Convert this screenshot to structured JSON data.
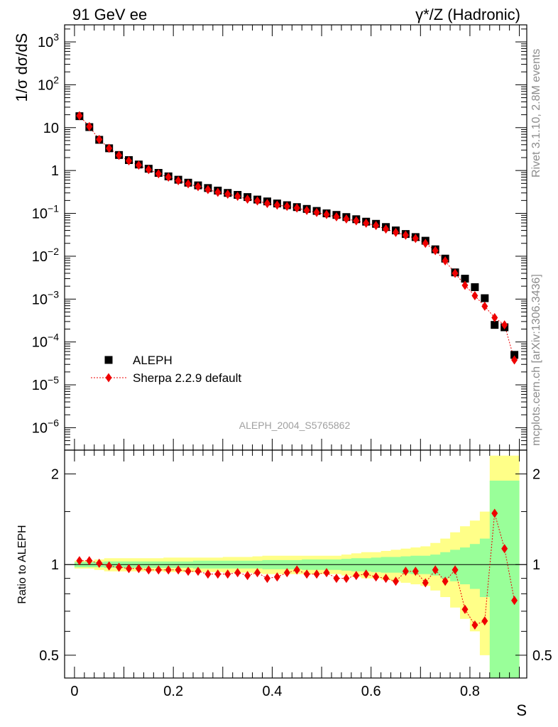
{
  "header": {
    "left": "91 GeV ee",
    "right": "γ*/Z (Hadronic)"
  },
  "side_labels": {
    "rivet": "Rivet 3.1.10,  2.8M events",
    "mcplots": "mcplots.cern.ch [arXiv:1306.3436]"
  },
  "watermark": "ALEPH_2004_S5765862",
  "colors": {
    "data": "#000000",
    "mc": "#ee0000",
    "band_inner": "#99ff99",
    "band_outer": "#ffff88"
  },
  "chart_data": [
    {
      "type": "scatter",
      "panel": "main",
      "ylabel": "1/σ  dσ/dS",
      "yscale": "log",
      "ylim": [
        3e-07,
        2500
      ],
      "xlim": [
        -0.02,
        0.915
      ],
      "ytick_labels": [
        "10^-6",
        "10^-5",
        "10^-4",
        "10^-3",
        "10^-2",
        "10^-1",
        "1",
        "10",
        "10^2",
        "10^3"
      ],
      "x": [
        0.01,
        0.03,
        0.05,
        0.07,
        0.09,
        0.11,
        0.13,
        0.15,
        0.17,
        0.19,
        0.21,
        0.23,
        0.25,
        0.27,
        0.29,
        0.31,
        0.33,
        0.35,
        0.37,
        0.39,
        0.41,
        0.43,
        0.45,
        0.47,
        0.49,
        0.51,
        0.53,
        0.55,
        0.57,
        0.59,
        0.61,
        0.63,
        0.65,
        0.67,
        0.69,
        0.71,
        0.73,
        0.75,
        0.77,
        0.79,
        0.81,
        0.83,
        0.85,
        0.87,
        0.89
      ],
      "legend": {
        "position": "bottom-left"
      },
      "series": [
        {
          "name": "ALEPH",
          "marker": "square",
          "values": [
            18.5,
            10.3,
            5.2,
            3.3,
            2.3,
            1.75,
            1.38,
            1.1,
            0.88,
            0.73,
            0.61,
            0.52,
            0.45,
            0.39,
            0.34,
            0.3,
            0.27,
            0.24,
            0.21,
            0.19,
            0.17,
            0.155,
            0.14,
            0.127,
            0.114,
            0.1,
            0.092,
            0.082,
            0.073,
            0.064,
            0.057,
            0.048,
            0.04,
            0.033,
            0.028,
            0.023,
            0.0145,
            0.0088,
            0.0042,
            0.003,
            0.0019,
            0.00105,
            0.00025,
            0.00022,
            5e-05
          ]
        },
        {
          "name": "Sherpa 2.2.9 default",
          "marker": "diamond",
          "line": "dotted",
          "values": [
            19.0,
            10.6,
            5.3,
            3.3,
            2.25,
            1.68,
            1.33,
            1.05,
            0.84,
            0.7,
            0.58,
            0.49,
            0.42,
            0.36,
            0.31,
            0.28,
            0.25,
            0.215,
            0.195,
            0.17,
            0.156,
            0.146,
            0.133,
            0.117,
            0.105,
            0.094,
            0.083,
            0.074,
            0.067,
            0.059,
            0.052,
            0.043,
            0.036,
            0.031,
            0.026,
            0.02,
            0.0135,
            0.0078,
            0.004,
            0.0021,
            0.0012,
            0.00068,
            0.00037,
            0.00025,
            3.8e-05
          ]
        }
      ]
    },
    {
      "type": "scatter",
      "panel": "ratio",
      "xlabel": "S",
      "ylabel": "Ratio to ALEPH",
      "yscale": "log",
      "ylim": [
        0.42,
        2.4
      ],
      "xlim": [
        -0.02,
        0.915
      ],
      "xtick_labels": [
        "0",
        "0.2",
        "0.4",
        "0.6",
        "0.8"
      ],
      "ytick_labels": [
        "0.5",
        "1",
        "2"
      ],
      "x": [
        0.01,
        0.03,
        0.05,
        0.07,
        0.09,
        0.11,
        0.13,
        0.15,
        0.17,
        0.19,
        0.21,
        0.23,
        0.25,
        0.27,
        0.29,
        0.31,
        0.33,
        0.35,
        0.37,
        0.39,
        0.41,
        0.43,
        0.45,
        0.47,
        0.49,
        0.51,
        0.53,
        0.55,
        0.57,
        0.59,
        0.61,
        0.63,
        0.65,
        0.67,
        0.69,
        0.71,
        0.73,
        0.75,
        0.77,
        0.79,
        0.81,
        0.83,
        0.85,
        0.87,
        0.89
      ],
      "series": [
        {
          "name": "Sherpa 2.2.9 default",
          "values": [
            1.03,
            1.03,
            1.01,
            0.99,
            0.98,
            0.97,
            0.97,
            0.96,
            0.96,
            0.96,
            0.96,
            0.95,
            0.95,
            0.93,
            0.93,
            0.93,
            0.94,
            0.92,
            0.94,
            0.9,
            0.91,
            0.94,
            0.96,
            0.93,
            0.93,
            0.94,
            0.9,
            0.9,
            0.92,
            0.93,
            0.91,
            0.9,
            0.88,
            0.95,
            0.95,
            0.87,
            0.96,
            0.88,
            0.96,
            0.71,
            0.63,
            0.65,
            1.48,
            1.13,
            0.76
          ]
        }
      ],
      "band_inner": [
        0.02,
        0.02,
        0.02,
        0.025,
        0.025,
        0.025,
        0.025,
        0.025,
        0.025,
        0.025,
        0.025,
        0.025,
        0.03,
        0.03,
        0.03,
        0.03,
        0.03,
        0.03,
        0.03,
        0.035,
        0.035,
        0.035,
        0.035,
        0.04,
        0.04,
        0.04,
        0.04,
        0.045,
        0.05,
        0.05,
        0.055,
        0.06,
        0.06,
        0.065,
        0.07,
        0.07,
        0.08,
        0.1,
        0.12,
        0.14,
        0.17,
        0.22,
        0.9,
        0.9,
        0.9
      ],
      "band_outer": [
        0.03,
        0.03,
        0.04,
        0.05,
        0.05,
        0.05,
        0.05,
        0.05,
        0.05,
        0.055,
        0.055,
        0.055,
        0.055,
        0.055,
        0.055,
        0.06,
        0.06,
        0.06,
        0.065,
        0.07,
        0.07,
        0.07,
        0.07,
        0.07,
        0.07,
        0.07,
        0.07,
        0.08,
        0.09,
        0.1,
        0.1,
        0.11,
        0.12,
        0.13,
        0.14,
        0.15,
        0.18,
        0.22,
        0.28,
        0.34,
        0.4,
        0.5,
        1.3,
        1.3,
        1.3
      ]
    }
  ]
}
